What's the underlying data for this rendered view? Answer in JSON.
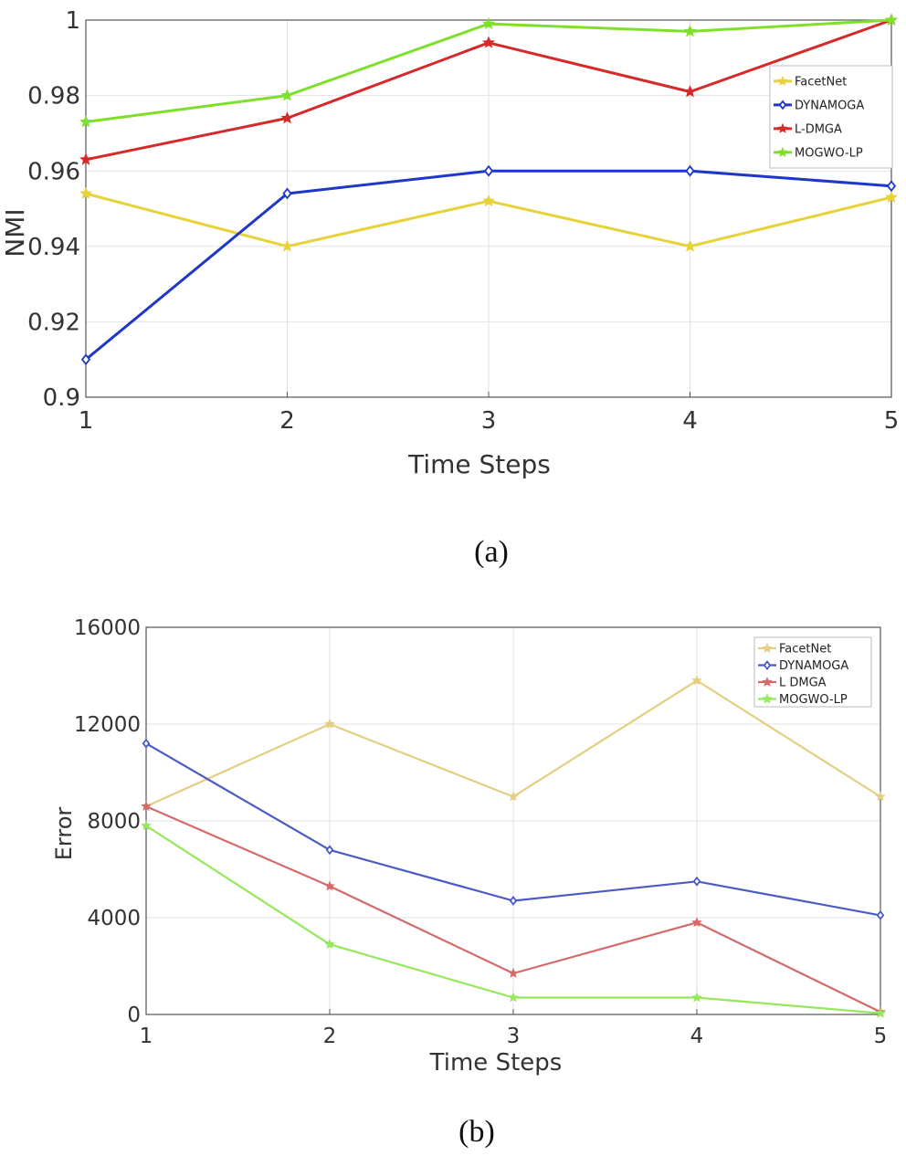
{
  "chart_data": [
    {
      "type": "line",
      "title": "",
      "caption": "(a)",
      "xlabel": "Time Steps",
      "ylabel": "NMI",
      "x": [
        1,
        2,
        3,
        4,
        5
      ],
      "xlim": [
        1,
        5
      ],
      "ylim": [
        0.9,
        1.0
      ],
      "yticks": [
        "0.9",
        "0.92",
        "0.94",
        "0.96",
        "0.98",
        "1"
      ],
      "xticks": [
        "1",
        "2",
        "3",
        "4",
        "5"
      ],
      "grid": true,
      "legend_position": "top-right",
      "series": [
        {
          "name": "FacetNet",
          "color": "#e8d23a",
          "marker": "star",
          "values": [
            0.954,
            0.94,
            0.952,
            0.94,
            0.953
          ]
        },
        {
          "name": "DYNAMOGA",
          "color": "#1f37c8",
          "marker": "diamond",
          "values": [
            0.91,
            0.954,
            0.96,
            0.96,
            0.956
          ]
        },
        {
          "name": "L-DMGA",
          "color": "#d62a2a",
          "marker": "star",
          "values": [
            0.963,
            0.974,
            0.994,
            0.981,
            1.0
          ]
        },
        {
          "name": "MOGWO-LP",
          "color": "#7ee02a",
          "marker": "star",
          "values": [
            0.973,
            0.98,
            0.999,
            0.997,
            1.0
          ]
        }
      ]
    },
    {
      "type": "line",
      "title": "",
      "caption": "(b)",
      "xlabel": "Time Steps",
      "ylabel": "Error",
      "x": [
        1,
        2,
        3,
        4,
        5
      ],
      "xlim": [
        1,
        5
      ],
      "ylim": [
        0,
        16000
      ],
      "yticks": [
        "0",
        "4000",
        "8000",
        "12000",
        "16000"
      ],
      "xticks": [
        "1",
        "2",
        "3",
        "4",
        "5"
      ],
      "grid": true,
      "legend_position": "top-right",
      "series": [
        {
          "name": "FacetNet",
          "color": "#e3cf82",
          "marker": "star",
          "values": [
            8600,
            12000,
            9000,
            13800,
            9000
          ]
        },
        {
          "name": "DYNAMOGA",
          "color": "#4a5bc4",
          "marker": "diamond",
          "values": [
            11200,
            6800,
            4700,
            5500,
            4100
          ]
        },
        {
          "name": "L DMGA",
          "color": "#d66a6a",
          "marker": "star",
          "values": [
            8600,
            5300,
            1700,
            3800,
            100
          ]
        },
        {
          "name": "MOGWO-LP",
          "color": "#95e85c",
          "marker": "star",
          "values": [
            7800,
            2900,
            700,
            700,
            50
          ]
        }
      ]
    }
  ]
}
